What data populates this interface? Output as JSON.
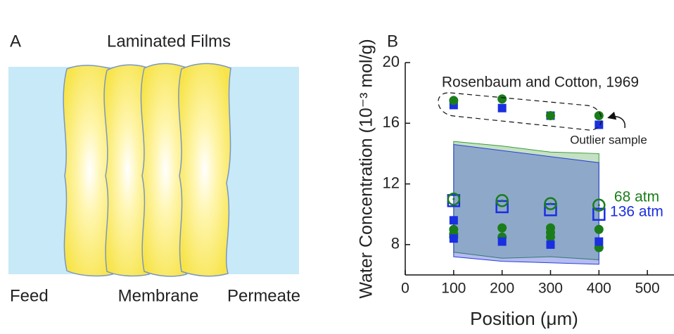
{
  "panel_a": {
    "label": "A",
    "title": "Laminated Films",
    "feed": "Feed",
    "membrane": "Membrane",
    "permeate": "Permeate"
  },
  "chart_data": {
    "type": "scatter",
    "panel_label": "B",
    "x_label": "Position (μm)",
    "y_label": "Water Concentration (10⁻³ mol/g)",
    "xlim": [
      0,
      555
    ],
    "xticks": [
      0,
      100,
      200,
      300,
      400,
      500
    ],
    "ylim": [
      6,
      20
    ],
    "yticks": [
      8,
      12,
      16,
      20
    ],
    "annotations": {
      "reference": "Rosenbaum and Cotton, 1969",
      "outlier": "Outlier sample"
    },
    "bands": [
      {
        "color": "#3a9a3a",
        "x": [
          100,
          200,
          300,
          400
        ],
        "upper": [
          14.8,
          14.5,
          14.1,
          14.0
        ],
        "lower": [
          7.5,
          7.1,
          7.2,
          7.0
        ]
      },
      {
        "color": "#2b3fd6",
        "x": [
          100,
          200,
          300,
          400
        ],
        "upper": [
          14.6,
          14.2,
          13.8,
          13.4
        ],
        "lower": [
          7.2,
          6.9,
          6.8,
          6.7
        ]
      }
    ],
    "series": [
      {
        "name": "68 atm",
        "color": "#1a7d1a",
        "marker": "circle",
        "filled": true,
        "x": [
          100,
          100,
          100,
          200,
          200,
          300,
          300,
          300,
          400,
          400
        ],
        "values": [
          9.0,
          8.7,
          8.5,
          9.1,
          8.5,
          9.1,
          8.8,
          8.5,
          9.0,
          7.8
        ]
      },
      {
        "name": "136 atm",
        "color": "#1a2fe0",
        "marker": "square",
        "filled": true,
        "x": [
          100,
          100,
          200,
          300,
          400
        ],
        "values": [
          9.6,
          8.4,
          8.2,
          8.0,
          8.2
        ]
      },
      {
        "color": "#1a2fe0",
        "marker": "square",
        "filled": false,
        "x": [
          100,
          200,
          300,
          400
        ],
        "values": [
          10.9,
          10.5,
          10.3,
          10.0
        ]
      },
      {
        "color": "#1a7d1a",
        "marker": "circle",
        "filled": false,
        "x": [
          100,
          200,
          300,
          400
        ],
        "values": [
          11.0,
          10.9,
          10.7,
          10.6
        ]
      },
      {
        "color": "#1a2fe0",
        "marker": "square",
        "filled": true,
        "x": [
          100,
          200,
          300,
          400
        ],
        "values": [
          17.2,
          17.0,
          16.5,
          15.9
        ]
      },
      {
        "color": "#1a7d1a",
        "marker": "circle",
        "filled": true,
        "x": [
          100,
          200,
          300,
          400
        ],
        "values": [
          17.5,
          17.6,
          16.5,
          16.5
        ]
      }
    ]
  }
}
